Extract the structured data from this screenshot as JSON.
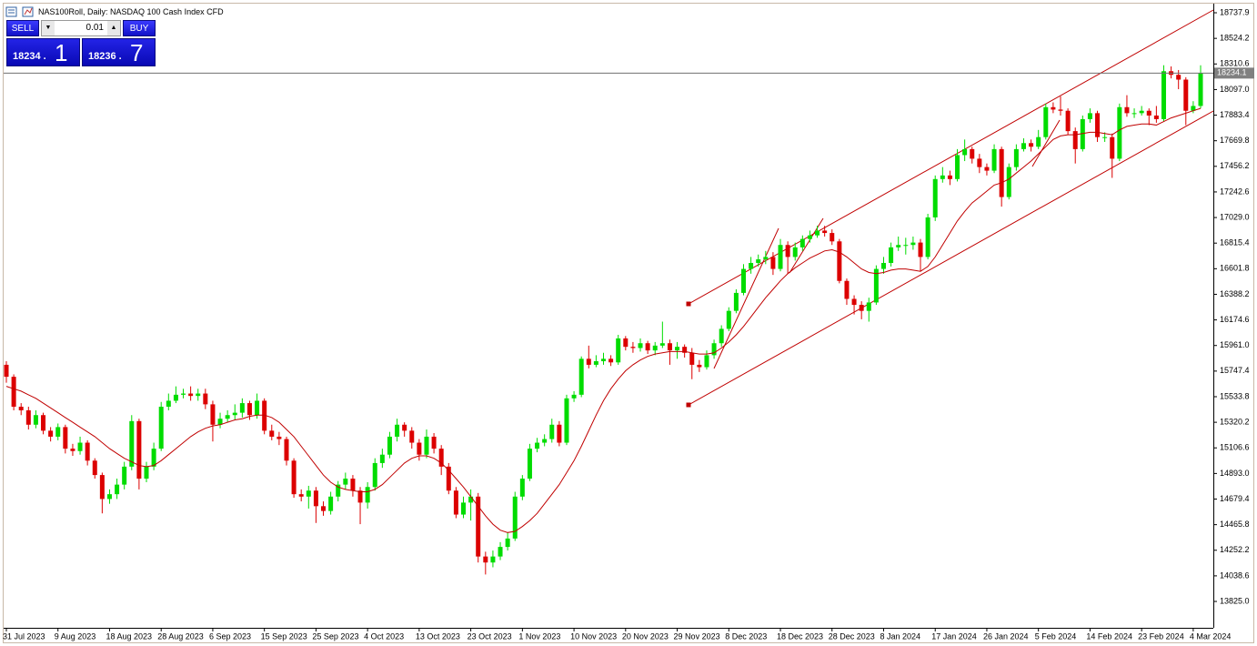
{
  "chart_data": {
    "type": "candlestick",
    "title": "NAS100Roll, Daily:  NASDAQ 100 Cash Index CFD",
    "categories": [
      "31 Jul 2023",
      null,
      null,
      null,
      null,
      null,
      null,
      "9 Aug 2023",
      null,
      null,
      null,
      null,
      null,
      null,
      "18 Aug 2023",
      null,
      null,
      null,
      null,
      null,
      null,
      "28 Aug 2023",
      null,
      null,
      null,
      null,
      null,
      null,
      "6 Sep 2023",
      null,
      null,
      null,
      null,
      null,
      null,
      "15 Sep 2023",
      null,
      null,
      null,
      null,
      null,
      null,
      "25 Sep 2023",
      null,
      null,
      null,
      null,
      null,
      null,
      "4 Oct 2023",
      null,
      null,
      null,
      null,
      null,
      null,
      "13 Oct 2023",
      null,
      null,
      null,
      null,
      null,
      null,
      "23 Oct 2023",
      null,
      null,
      null,
      null,
      null,
      null,
      "1 Nov 2023",
      null,
      null,
      null,
      null,
      null,
      null,
      "10 Nov 2023",
      null,
      null,
      null,
      null,
      null,
      null,
      "20 Nov 2023",
      null,
      null,
      null,
      null,
      null,
      null,
      "29 Nov 2023",
      null,
      null,
      null,
      null,
      null,
      null,
      "8 Dec 2023",
      null,
      null,
      null,
      null,
      null,
      null,
      "18 Dec 2023",
      null,
      null,
      null,
      null,
      null,
      null,
      "28 Dec 2023",
      null,
      null,
      null,
      null,
      null,
      null,
      "8 Jan 2024",
      null,
      null,
      null,
      null,
      null,
      null,
      "17 Jan 2024",
      null,
      null,
      null,
      null,
      null,
      null,
      "26 Jan 2024",
      null,
      null,
      null,
      null,
      null,
      null,
      "5 Feb 2024",
      null,
      null,
      null,
      null,
      null,
      null,
      "14 Feb 2024",
      null,
      null,
      null,
      null,
      null,
      null,
      "23 Feb 2024",
      null,
      null,
      null,
      null,
      null,
      null,
      "4 Mar 2024",
      null
    ],
    "open": [
      15800,
      15700,
      15450,
      15420,
      15300,
      15380,
      15250,
      15200,
      15280,
      15100,
      15080,
      15150,
      15000,
      14880,
      14680,
      14720,
      14800,
      14950,
      15330,
      14850,
      14950,
      15100,
      15450,
      15500,
      15550,
      15560,
      15540,
      15560,
      15470,
      15300,
      15350,
      15380,
      15400,
      15480,
      15380,
      15500,
      15250,
      15200,
      15180,
      15000,
      14720,
      14700,
      14750,
      14620,
      14580,
      14700,
      14800,
      14850,
      14750,
      14650,
      14780,
      14980,
      15050,
      15200,
      15300,
      15250,
      15150,
      15050,
      15200,
      15100,
      14950,
      14750,
      14550,
      14650,
      14700,
      14200,
      14150,
      14200,
      14280,
      14350,
      14700,
      14850,
      15100,
      15150,
      15180,
      15300,
      15150,
      15520,
      15550,
      15850,
      15800,
      15830,
      15850,
      15820,
      16020,
      15950,
      15940,
      15980,
      15920,
      15960,
      15980,
      15920,
      15950,
      15900,
      15800,
      15780,
      15880,
      15980,
      16100,
      16250,
      16400,
      16600,
      16650,
      16680,
      16700,
      16600,
      16800,
      16700,
      16780,
      16850,
      16880,
      16920,
      16900,
      16830,
      16500,
      16350,
      16300,
      16250,
      16320,
      16600,
      16650,
      16780,
      16800,
      16800,
      16820,
      16700,
      17030,
      17350,
      17380,
      17350,
      17550,
      17600,
      17520,
      17450,
      17420,
      17600,
      17200,
      17450,
      17600,
      17650,
      17620,
      17700,
      17950,
      17930,
      17920,
      17750,
      17600,
      17850,
      17900,
      17700,
      17700,
      17520,
      17950,
      17900,
      17900,
      17920,
      17880,
      17850,
      18250,
      18220,
      18180,
      17920,
      17960
    ],
    "high": [
      15830,
      15720,
      15480,
      15450,
      15420,
      15400,
      15280,
      15310,
      15300,
      15140,
      15200,
      15170,
      15020,
      14900,
      14760,
      14850,
      14990,
      15380,
      15350,
      14990,
      15150,
      15490,
      15560,
      15620,
      15600,
      15620,
      15600,
      15600,
      15500,
      15400,
      15420,
      15470,
      15520,
      15500,
      15560,
      15520,
      15300,
      15240,
      15200,
      15020,
      14760,
      14790,
      14780,
      14660,
      14740,
      14830,
      14900,
      14880,
      14780,
      14820,
      15020,
      15100,
      15240,
      15350,
      15320,
      15280,
      15180,
      15260,
      15230,
      15130,
      14980,
      14780,
      14700,
      14760,
      14730,
      14240,
      14250,
      14320,
      14400,
      14740,
      14880,
      15140,
      15190,
      15220,
      15350,
      15330,
      15550,
      15580,
      15870,
      15960,
      15880,
      15900,
      15880,
      16050,
      16040,
      15990,
      16020,
      16000,
      15990,
      16160,
      16010,
      15990,
      15970,
      15940,
      15840,
      15920,
      16010,
      16130,
      16280,
      16430,
      16640,
      16700,
      16720,
      16750,
      16740,
      16850,
      16830,
      16820,
      16880,
      16920,
      16960,
      16960,
      16930,
      16850,
      16520,
      16380,
      16330,
      16360,
      16630,
      16700,
      16820,
      16870,
      16860,
      16870,
      16850,
      17060,
      17380,
      17450,
      17420,
      17600,
      17680,
      17620,
      17560,
      17480,
      17640,
      17620,
      17480,
      17640,
      17690,
      17680,
      17760,
      17980,
      17990,
      18040,
      17940,
      17780,
      17880,
      17940,
      17920,
      17740,
      17730,
      17980,
      18050,
      17940,
      17960,
      17940,
      17960,
      18300,
      18290,
      18260,
      18200,
      18000,
      18300
    ],
    "low": [
      15650,
      15420,
      15380,
      15260,
      15270,
      15220,
      15160,
      15170,
      15060,
      15040,
      15050,
      14960,
      14850,
      14560,
      14640,
      14680,
      14760,
      14920,
      14760,
      14820,
      14920,
      15080,
      15420,
      15480,
      15520,
      15500,
      15500,
      15430,
      15160,
      15270,
      15320,
      15340,
      15360,
      15340,
      15350,
      15220,
      15170,
      15130,
      14960,
      14690,
      14660,
      14600,
      14480,
      14540,
      14550,
      14660,
      14760,
      14700,
      14470,
      14600,
      14750,
      14940,
      15020,
      15160,
      15200,
      15100,
      15000,
      15020,
      15060,
      14880,
      14720,
      14520,
      14520,
      14500,
      14150,
      14050,
      14110,
      14170,
      14250,
      14330,
      14670,
      14830,
      15070,
      15120,
      15150,
      15120,
      15130,
      15490,
      15530,
      15770,
      15780,
      15800,
      15790,
      15800,
      15920,
      15900,
      15910,
      15890,
      15880,
      15940,
      15800,
      15850,
      15860,
      15680,
      15740,
      15760,
      15850,
      15950,
      16080,
      16230,
      16380,
      16560,
      16620,
      16640,
      16550,
      16580,
      16560,
      16670,
      16750,
      16820,
      16860,
      16870,
      16800,
      16480,
      16300,
      16220,
      16180,
      16160,
      16300,
      16560,
      16620,
      16750,
      16720,
      16760,
      16580,
      16680,
      17000,
      17320,
      17300,
      17330,
      17500,
      17480,
      17400,
      17380,
      17400,
      17120,
      17180,
      17420,
      17580,
      17580,
      17600,
      17680,
      17900,
      17880,
      17720,
      17480,
      17580,
      17820,
      17660,
      17660,
      17360,
      17500,
      17870,
      17860,
      17880,
      17800,
      17820,
      17830,
      18190,
      18100,
      17800,
      17900,
      17940
    ],
    "close": [
      15700,
      15450,
      15420,
      15300,
      15380,
      15250,
      15200,
      15280,
      15100,
      15080,
      15150,
      15000,
      14880,
      14680,
      14720,
      14800,
      14950,
      15330,
      14850,
      14950,
      15100,
      15450,
      15500,
      15550,
      15560,
      15540,
      15560,
      15470,
      15300,
      15350,
      15380,
      15400,
      15480,
      15380,
      15500,
      15250,
      15200,
      15180,
      15000,
      14720,
      14700,
      14750,
      14620,
      14580,
      14700,
      14800,
      14850,
      14750,
      14650,
      14780,
      14980,
      15050,
      15200,
      15300,
      15250,
      15150,
      15050,
      15200,
      15100,
      14950,
      14750,
      14550,
      14650,
      14700,
      14200,
      14150,
      14200,
      14280,
      14350,
      14700,
      14850,
      15100,
      15150,
      15180,
      15300,
      15150,
      15520,
      15550,
      15850,
      15800,
      15830,
      15850,
      15820,
      16020,
      15950,
      15940,
      15980,
      15920,
      15960,
      15980,
      15920,
      15950,
      15900,
      15800,
      15780,
      15880,
      15980,
      16100,
      16250,
      16400,
      16600,
      16650,
      16680,
      16700,
      16600,
      16800,
      16700,
      16780,
      16850,
      16880,
      16920,
      16900,
      16830,
      16500,
      16350,
      16300,
      16250,
      16320,
      16600,
      16650,
      16780,
      16800,
      16800,
      16820,
      16700,
      17030,
      17350,
      17380,
      17350,
      17550,
      17600,
      17520,
      17450,
      17420,
      17600,
      17200,
      17450,
      17600,
      17650,
      17620,
      17700,
      17950,
      17930,
      17920,
      17750,
      17600,
      17850,
      17900,
      17700,
      17700,
      17520,
      17950,
      17900,
      17900,
      17920,
      17880,
      17850,
      18250,
      18220,
      18180,
      17920,
      17960,
      18234.1
    ],
    "ma": [
      15620,
      15600,
      15580,
      15550,
      15520,
      15480,
      15440,
      15400,
      15360,
      15320,
      15280,
      15240,
      15200,
      15150,
      15100,
      15060,
      15020,
      14990,
      14960,
      14950,
      14960,
      15000,
      15050,
      15100,
      15150,
      15200,
      15240,
      15270,
      15290,
      15300,
      15320,
      15340,
      15350,
      15370,
      15380,
      15380,
      15360,
      15320,
      15260,
      15200,
      15120,
      15040,
      14960,
      14880,
      14820,
      14780,
      14760,
      14750,
      14740,
      14740,
      14760,
      14800,
      14860,
      14920,
      14980,
      15020,
      15040,
      15040,
      15020,
      14980,
      14920,
      14850,
      14780,
      14700,
      14620,
      14540,
      14470,
      14420,
      14400,
      14410,
      14450,
      14500,
      14560,
      14640,
      14720,
      14800,
      14900,
      15000,
      15120,
      15250,
      15380,
      15500,
      15600,
      15680,
      15750,
      15800,
      15840,
      15870,
      15890,
      15900,
      15910,
      15910,
      15910,
      15900,
      15890,
      15890,
      15900,
      15940,
      15990,
      16050,
      16120,
      16200,
      16280,
      16360,
      16430,
      16500,
      16560,
      16610,
      16650,
      16690,
      16720,
      16750,
      16760,
      16740,
      16700,
      16650,
      16600,
      16570,
      16560,
      16570,
      16590,
      16600,
      16600,
      16590,
      16580,
      16620,
      16700,
      16800,
      16900,
      17000,
      17080,
      17150,
      17200,
      17250,
      17300,
      17320,
      17350,
      17400,
      17450,
      17500,
      17560,
      17620,
      17680,
      17710,
      17720,
      17720,
      17730,
      17740,
      17740,
      17730,
      17720,
      17760,
      17790,
      17800,
      17810,
      17810,
      17800,
      17830,
      17860,
      17880,
      17900,
      17920,
      17940
    ],
    "last_price": 18234.1,
    "up_color": "#00dc00",
    "down_color": "#dc0000",
    "ma_color": "#c00000",
    "ylim": [
      13605,
      18814
    ],
    "yticks": [
      {
        "value": 13825,
        "label": "13825.0"
      },
      14038.6,
      14252.2,
      14465.8,
      14679.4,
      {
        "value": 14893,
        "label": "14893.0"
      },
      15106.6,
      15320.2,
      15533.8,
      15747.4,
      {
        "value": 15961,
        "label": "15961.0"
      },
      16174.6,
      16388.2,
      16601.8,
      16815.4,
      {
        "value": 17029,
        "label": "17029.0"
      },
      17242.6,
      17456.2,
      17669.8,
      17883.4,
      {
        "value": 18097,
        "label": "18097.0"
      },
      18310.6,
      18524.2,
      18737.9
    ],
    "grid": false
  },
  "trade_panel": {
    "sell": "SELL",
    "buy": "BUY",
    "lot": "0.01",
    "sell_main": "18234 .",
    "sell_big": "1",
    "buy_main": "18236 .",
    "buy_big": "7"
  }
}
